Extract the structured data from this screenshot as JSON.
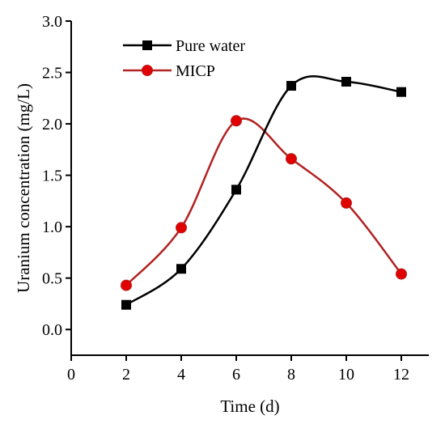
{
  "colors": {
    "pure_water": "#000000",
    "micp_line": "#b22222",
    "micp_marker": "#e00000"
  },
  "chart_data": {
    "type": "line",
    "title": "",
    "xlabel": "Time (d)",
    "ylabel": "Uranium concentration (mg/L)",
    "xlim": [
      0,
      13
    ],
    "ylim": [
      -0.25,
      3.0
    ],
    "xticks": [
      "0",
      "2",
      "4",
      "6",
      "8",
      "10",
      "12"
    ],
    "yticks": [
      "0.0",
      "0.5",
      "1.0",
      "1.5",
      "2.0",
      "2.5",
      "3.0"
    ],
    "grid": false,
    "legend_position": "top-left",
    "smoothed": true,
    "series": [
      {
        "name": "Pure water",
        "marker": "square",
        "color": "#000000",
        "x": [
          2,
          4,
          6,
          8,
          10,
          12
        ],
        "y": [
          0.24,
          0.59,
          1.36,
          2.37,
          2.41,
          2.31
        ]
      },
      {
        "name": "MICP",
        "marker": "circle",
        "color": "#b22222",
        "x": [
          2,
          4,
          6,
          8,
          10,
          12
        ],
        "y": [
          0.43,
          0.99,
          2.03,
          1.66,
          1.23,
          0.54
        ]
      }
    ]
  }
}
